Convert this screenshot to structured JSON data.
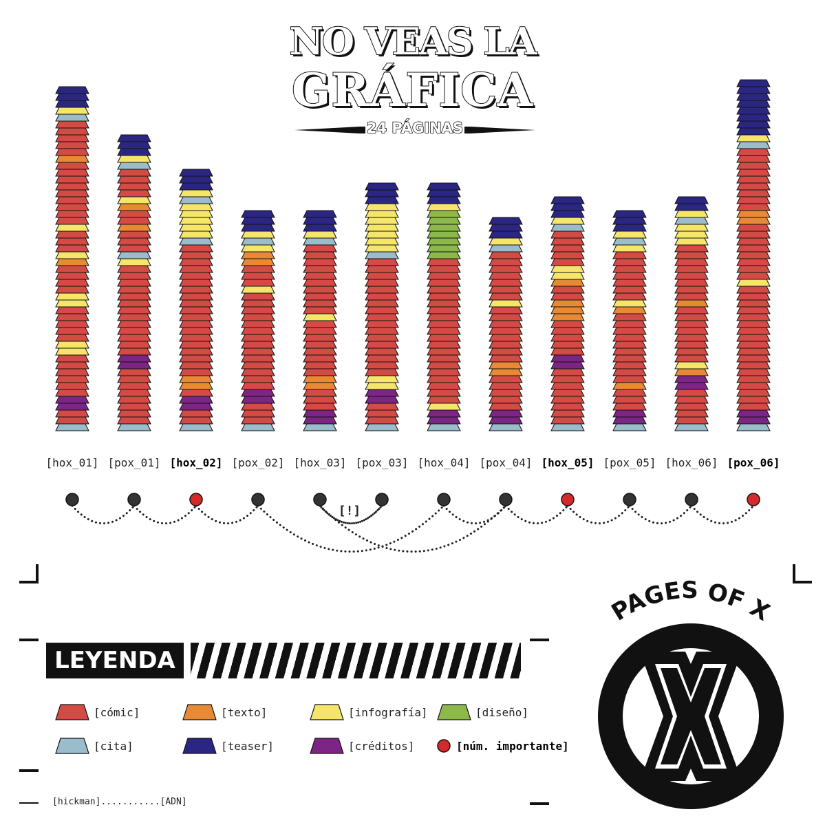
{
  "title": {
    "line1": "NO VEAS LA",
    "line2": "GRÁFICA",
    "subtitle": "24 PÁGINAS"
  },
  "colors": {
    "comic": "#d44a45",
    "texto": "#e88a35",
    "infografia": "#f5e66a",
    "diseno": "#8db84a",
    "cita": "#9bbccb",
    "teaser": "#2c2683",
    "creditos": "#7d2585",
    "importante": "#d42a2a",
    "dot": "#333333"
  },
  "chart_data": {
    "type": "bar",
    "title": "GRÁFICA",
    "categories": [
      "[hox_01]",
      "[pox_01]",
      "[hox_02]",
      "[pox_02]",
      "[hox_03]",
      "[pox_03]",
      "[hox_04]",
      "[pox_04]",
      "[hox_05]",
      "[pox_05]",
      "[hox_06]",
      "[pox_06]"
    ],
    "important": [
      false,
      false,
      true,
      false,
      false,
      false,
      false,
      false,
      true,
      false,
      false,
      true
    ],
    "series_legend": [
      "cómic",
      "texto",
      "infografía",
      "diseño",
      "cita",
      "teaser",
      "créditos"
    ],
    "pages_bottom_to_top": [
      [
        "cita",
        "comic",
        "comic",
        "creditos",
        "creditos",
        "comic",
        "comic",
        "comic",
        "comic",
        "comic",
        "comic",
        "infografia",
        "infografia",
        "comic",
        "comic",
        "comic",
        "comic",
        "comic",
        "infografia",
        "infografia",
        "comic",
        "comic",
        "comic",
        "comic",
        "texto",
        "infografia",
        "comic",
        "comic",
        "comic",
        "infografia",
        "comic",
        "comic",
        "comic",
        "comic",
        "comic",
        "comic",
        "comic",
        "comic",
        "comic",
        "texto",
        "comic",
        "comic",
        "comic",
        "comic",
        "comic",
        "cita",
        "infografia",
        "teaser",
        "teaser",
        "teaser"
      ],
      [
        "cita",
        "comic",
        "comic",
        "comic",
        "comic",
        "comic",
        "comic",
        "comic",
        "comic",
        "creditos",
        "creditos",
        "comic",
        "comic",
        "comic",
        "comic",
        "comic",
        "comic",
        "comic",
        "comic",
        "comic",
        "comic",
        "comic",
        "comic",
        "comic",
        "infografia",
        "cita",
        "comic",
        "comic",
        "comic",
        "texto",
        "comic",
        "comic",
        "texto",
        "infografia",
        "comic",
        "comic",
        "comic",
        "comic",
        "cita",
        "infografia",
        "teaser",
        "teaser",
        "teaser"
      ],
      [
        "cita",
        "comic",
        "comic",
        "creditos",
        "creditos",
        "comic",
        "texto",
        "texto",
        "comic",
        "comic",
        "comic",
        "comic",
        "comic",
        "comic",
        "comic",
        "comic",
        "comic",
        "comic",
        "comic",
        "comic",
        "comic",
        "comic",
        "comic",
        "comic",
        "comic",
        "comic",
        "comic",
        "cita",
        "infografia",
        "infografia",
        "infografia",
        "infografia",
        "infografia",
        "cita",
        "infografia",
        "teaser",
        "teaser",
        "teaser"
      ],
      [
        "cita",
        "comic",
        "comic",
        "comic",
        "creditos",
        "creditos",
        "comic",
        "comic",
        "comic",
        "comic",
        "comic",
        "comic",
        "comic",
        "comic",
        "comic",
        "comic",
        "comic",
        "comic",
        "comic",
        "comic",
        "infografia",
        "comic",
        "comic",
        "comic",
        "texto",
        "texto",
        "infografia",
        "cita",
        "infografia",
        "teaser",
        "teaser",
        "teaser"
      ],
      [
        "cita",
        "creditos",
        "creditos",
        "comic",
        "comic",
        "comic",
        "texto",
        "texto",
        "comic",
        "comic",
        "comic",
        "comic",
        "comic",
        "comic",
        "comic",
        "comic",
        "infografia",
        "comic",
        "comic",
        "comic",
        "comic",
        "comic",
        "comic",
        "comic",
        "comic",
        "comic",
        "comic",
        "cita",
        "infografia",
        "teaser",
        "teaser",
        "teaser"
      ],
      [
        "cita",
        "comic",
        "comic",
        "comic",
        "creditos",
        "creditos",
        "infografia",
        "infografia",
        "comic",
        "comic",
        "comic",
        "comic",
        "comic",
        "comic",
        "comic",
        "comic",
        "comic",
        "comic",
        "comic",
        "comic",
        "comic",
        "comic",
        "comic",
        "comic",
        "comic",
        "cita",
        "infografia",
        "infografia",
        "infografia",
        "infografia",
        "infografia",
        "infografia",
        "infografia",
        "teaser",
        "teaser",
        "teaser"
      ],
      [
        "cita",
        "creditos",
        "creditos",
        "infografia",
        "comic",
        "comic",
        "comic",
        "comic",
        "comic",
        "comic",
        "comic",
        "comic",
        "comic",
        "comic",
        "comic",
        "comic",
        "comic",
        "comic",
        "comic",
        "comic",
        "comic",
        "comic",
        "comic",
        "comic",
        "comic",
        "diseno",
        "diseno",
        "diseno",
        "diseno",
        "diseno",
        "diseno",
        "diseno",
        "infografia",
        "teaser",
        "teaser",
        "teaser"
      ],
      [
        "cita",
        "creditos",
        "creditos",
        "comic",
        "comic",
        "comic",
        "comic",
        "comic",
        "texto",
        "texto",
        "comic",
        "comic",
        "comic",
        "comic",
        "comic",
        "comic",
        "comic",
        "comic",
        "infografia",
        "comic",
        "comic",
        "comic",
        "comic",
        "comic",
        "comic",
        "comic",
        "cita",
        "infografia",
        "teaser",
        "teaser",
        "teaser"
      ],
      [
        "cita",
        "comic",
        "comic",
        "comic",
        "comic",
        "comic",
        "comic",
        "comic",
        "comic",
        "creditos",
        "creditos",
        "comic",
        "comic",
        "comic",
        "comic",
        "comic",
        "texto",
        "texto",
        "texto",
        "comic",
        "comic",
        "texto",
        "infografia",
        "infografia",
        "comic",
        "comic",
        "comic",
        "comic",
        "comic",
        "cita",
        "infografia",
        "teaser",
        "teaser",
        "teaser"
      ],
      [
        "cita",
        "creditos",
        "creditos",
        "comic",
        "comic",
        "comic",
        "texto",
        "comic",
        "comic",
        "comic",
        "comic",
        "comic",
        "comic",
        "comic",
        "comic",
        "comic",
        "comic",
        "texto",
        "infografia",
        "comic",
        "comic",
        "comic",
        "comic",
        "comic",
        "comic",
        "comic",
        "infografia",
        "cita",
        "infografia",
        "teaser",
        "teaser",
        "teaser"
      ],
      [
        "cita",
        "comic",
        "comic",
        "comic",
        "comic",
        "comic",
        "creditos",
        "creditos",
        "texto",
        "infografia",
        "comic",
        "comic",
        "comic",
        "comic",
        "comic",
        "comic",
        "comic",
        "comic",
        "texto",
        "comic",
        "comic",
        "comic",
        "comic",
        "comic",
        "comic",
        "comic",
        "comic",
        "infografia",
        "infografia",
        "infografia",
        "cita",
        "infografia",
        "teaser",
        "teaser"
      ],
      [
        "cita",
        "creditos",
        "creditos",
        "comic",
        "comic",
        "comic",
        "comic",
        "comic",
        "comic",
        "comic",
        "comic",
        "comic",
        "comic",
        "comic",
        "comic",
        "comic",
        "comic",
        "comic",
        "comic",
        "comic",
        "comic",
        "infografia",
        "comic",
        "comic",
        "comic",
        "comic",
        "comic",
        "comic",
        "comic",
        "comic",
        "texto",
        "texto",
        "comic",
        "comic",
        "comic",
        "comic",
        "comic",
        "comic",
        "comic",
        "comic",
        "comic",
        "cita",
        "infografia",
        "teaser",
        "teaser",
        "teaser",
        "teaser",
        "teaser",
        "teaser",
        "teaser",
        "teaser"
      ]
    ]
  },
  "connections": {
    "note": "[!]",
    "links": [
      [
        0,
        1
      ],
      [
        1,
        2
      ],
      [
        2,
        3
      ],
      [
        3,
        6
      ],
      [
        4,
        5
      ],
      [
        4,
        7
      ],
      [
        5,
        4
      ],
      [
        6,
        7
      ],
      [
        7,
        8
      ],
      [
        8,
        9
      ],
      [
        9,
        10
      ],
      [
        10,
        11
      ]
    ]
  },
  "legend": {
    "title": "LEYENDA",
    "items": [
      {
        "key": "comic",
        "label": "[cómic]"
      },
      {
        "key": "texto",
        "label": "[texto]"
      },
      {
        "key": "infografia",
        "label": "[infografía]"
      },
      {
        "key": "diseno",
        "label": "[diseño]"
      },
      {
        "key": "cita",
        "label": "[cita]"
      },
      {
        "key": "teaser",
        "label": "[teaser]"
      },
      {
        "key": "creditos",
        "label": "[créditos]"
      },
      {
        "key": "importante",
        "label": "[núm. importante]",
        "dot": true
      }
    ]
  },
  "footer": {
    "credit": "[hickman]...........[ADN]"
  },
  "logo": {
    "text": "PAGES OF X"
  }
}
